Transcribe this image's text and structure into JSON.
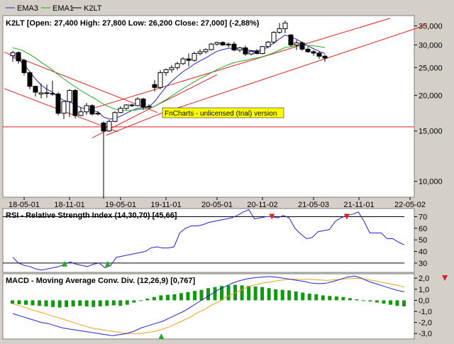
{
  "legend": {
    "items": [
      {
        "name": "EMA3",
        "color": "#2222cc"
      },
      {
        "name": "EMA1",
        "color": "#22aa22"
      },
      {
        "name": "K2LT",
        "color": "#000000"
      }
    ]
  },
  "watermark": "FnCharts - unlicensed (trial) version",
  "chart_data": [
    {
      "type": "candlestick",
      "title": "K2LT [Open: 27,400  High: 27,800  Low: 26,200  Close: 27,000] (-2,88%)",
      "scale": "log",
      "ylim": [
        8800,
        38000
      ],
      "yticks": [
        10000,
        15000,
        20000,
        25000,
        30000,
        35000
      ],
      "ytick_labels": [
        "10,000",
        "15,000",
        "20,000",
        "25,000",
        "30,000",
        "35,000"
      ],
      "xtick_labels": [
        {
          "label": "18-05-01",
          "bar": 2
        },
        {
          "label": "18-11-01",
          "bar": 10
        },
        {
          "label": "19-05-01",
          "bar": 19
        },
        {
          "label": "19-11-01",
          "bar": 27
        },
        {
          "label": "20-05-01",
          "bar": 36
        },
        {
          "label": "20-11-02",
          "bar": 44
        },
        {
          "label": "21-05-03",
          "bar": 53
        },
        {
          "label": "21-11-01",
          "bar": 61
        },
        {
          "label": "22-05-02",
          "bar": 70
        }
      ],
      "candles": [
        {
          "o": 27500,
          "h": 28600,
          "l": 26200,
          "c": 28200
        },
        {
          "o": 28200,
          "h": 28500,
          "l": 25800,
          "c": 26400
        },
        {
          "o": 26500,
          "h": 26800,
          "l": 23500,
          "c": 24000
        },
        {
          "o": 24000,
          "h": 24200,
          "l": 21000,
          "c": 21500
        },
        {
          "o": 21500,
          "h": 21600,
          "l": 19800,
          "c": 20500
        },
        {
          "o": 20200,
          "h": 22000,
          "l": 19500,
          "c": 20400
        },
        {
          "o": 20400,
          "h": 21800,
          "l": 19600,
          "c": 20300
        },
        {
          "o": 20300,
          "h": 22500,
          "l": 19900,
          "c": 20200
        },
        {
          "o": 20200,
          "h": 20500,
          "l": 17000,
          "c": 17300
        },
        {
          "o": 17300,
          "h": 19000,
          "l": 16500,
          "c": 19000
        },
        {
          "o": 19000,
          "h": 21000,
          "l": 16800,
          "c": 20800
        },
        {
          "o": 20800,
          "h": 21000,
          "l": 16600,
          "c": 17000
        },
        {
          "o": 17000,
          "h": 18200,
          "l": 16900,
          "c": 17500
        },
        {
          "o": 17500,
          "h": 18800,
          "l": 17100,
          "c": 18400
        },
        {
          "o": 18400,
          "h": 18600,
          "l": 17000,
          "c": 17200
        },
        {
          "o": 17200,
          "h": 17600,
          "l": 17000,
          "c": 17300
        },
        {
          "o": 16000,
          "h": 16200,
          "l": 8700,
          "c": 15000
        },
        {
          "o": 15000,
          "h": 16400,
          "l": 14900,
          "c": 16200
        },
        {
          "o": 16200,
          "h": 17600,
          "l": 16100,
          "c": 17400
        },
        {
          "o": 17400,
          "h": 18300,
          "l": 17300,
          "c": 18000
        },
        {
          "o": 18000,
          "h": 18600,
          "l": 17800,
          "c": 18500
        },
        {
          "o": 18500,
          "h": 18700,
          "l": 18200,
          "c": 18400
        },
        {
          "o": 18400,
          "h": 19700,
          "l": 18300,
          "c": 19400
        },
        {
          "o": 19400,
          "h": 19600,
          "l": 17800,
          "c": 18200
        },
        {
          "o": 18200,
          "h": 18600,
          "l": 18000,
          "c": 18300
        },
        {
          "o": 21800,
          "h": 22600,
          "l": 20600,
          "c": 21300
        },
        {
          "o": 21300,
          "h": 24500,
          "l": 21000,
          "c": 24000
        },
        {
          "o": 24000,
          "h": 24800,
          "l": 23400,
          "c": 24600
        },
        {
          "o": 24600,
          "h": 25500,
          "l": 24000,
          "c": 25000
        },
        {
          "o": 25000,
          "h": 26200,
          "l": 24500,
          "c": 25800
        },
        {
          "o": 25800,
          "h": 27200,
          "l": 25500,
          "c": 26800
        },
        {
          "o": 26800,
          "h": 28000,
          "l": 25200,
          "c": 26500
        },
        {
          "o": 26500,
          "h": 28400,
          "l": 26200,
          "c": 28000
        },
        {
          "o": 28000,
          "h": 29000,
          "l": 27600,
          "c": 28400
        },
        {
          "o": 28400,
          "h": 29200,
          "l": 28000,
          "c": 28900
        },
        {
          "o": 28900,
          "h": 30500,
          "l": 28700,
          "c": 30200
        },
        {
          "o": 30200,
          "h": 30800,
          "l": 29800,
          "c": 30600
        },
        {
          "o": 30600,
          "h": 30900,
          "l": 29800,
          "c": 30000
        },
        {
          "o": 30000,
          "h": 30600,
          "l": 29400,
          "c": 30200
        },
        {
          "o": 30200,
          "h": 30800,
          "l": 28500,
          "c": 28800
        },
        {
          "o": 28800,
          "h": 29500,
          "l": 28300,
          "c": 29300
        },
        {
          "o": 29300,
          "h": 29800,
          "l": 27500,
          "c": 27900
        },
        {
          "o": 27900,
          "h": 28800,
          "l": 27600,
          "c": 28500
        },
        {
          "o": 28500,
          "h": 29000,
          "l": 27800,
          "c": 28000
        },
        {
          "o": 28000,
          "h": 29800,
          "l": 27800,
          "c": 29600
        },
        {
          "o": 29600,
          "h": 31000,
          "l": 29200,
          "c": 30700
        },
        {
          "o": 30700,
          "h": 33500,
          "l": 30200,
          "c": 33200
        },
        {
          "o": 33200,
          "h": 35800,
          "l": 32800,
          "c": 34200
        },
        {
          "o": 34200,
          "h": 36500,
          "l": 33000,
          "c": 35800
        },
        {
          "o": 32500,
          "h": 32800,
          "l": 29500,
          "c": 30000
        },
        {
          "o": 30000,
          "h": 31200,
          "l": 28800,
          "c": 30500
        },
        {
          "o": 30500,
          "h": 30900,
          "l": 28600,
          "c": 29000
        },
        {
          "o": 29000,
          "h": 29600,
          "l": 28200,
          "c": 28400
        },
        {
          "o": 28400,
          "h": 28800,
          "l": 27500,
          "c": 28100
        },
        {
          "o": 28100,
          "h": 28500,
          "l": 26800,
          "c": 27400
        },
        {
          "o": 27400,
          "h": 27800,
          "l": 26200,
          "c": 27000
        }
      ],
      "ema_series": [
        {
          "name": "EMA3",
          "color": "#2222cc",
          "values": [
            27200,
            26600,
            25600,
            24200,
            22800,
            21700,
            21000,
            20500,
            19700,
            19200,
            19000,
            18500,
            18100,
            17900,
            17700,
            17500,
            16800,
            16500,
            16600,
            16900,
            17300,
            17700,
            18000,
            18100,
            18200,
            19000,
            20200,
            21400,
            22400,
            23300,
            24200,
            24900,
            25700,
            26400,
            27000,
            27800,
            28500,
            28900,
            29200,
            29200,
            29200,
            28800,
            28700,
            28600,
            28900,
            29500,
            30500,
            31500,
            32500,
            32000,
            31400,
            30600,
            29800,
            29100,
            28500,
            28000
          ]
        },
        {
          "name": "EMA1",
          "color": "#22aa22",
          "values": [
            29300,
            29000,
            28500,
            27800,
            27000,
            26100,
            25300,
            24500,
            23600,
            22800,
            22100,
            21400,
            20800,
            20200,
            19700,
            19200,
            18600,
            18200,
            17900,
            17700,
            17700,
            17700,
            17800,
            17900,
            18000,
            18300,
            18800,
            19300,
            19900,
            20500,
            21100,
            21700,
            22300,
            22900,
            23400,
            24000,
            24600,
            25100,
            25600,
            26000,
            26300,
            26500,
            26800,
            27000,
            27300,
            27700,
            28200,
            28800,
            29400,
            29600,
            29800,
            29900,
            29900,
            29800,
            29600,
            29400
          ]
        }
      ],
      "trendlines": [
        {
          "from": {
            "bar": -1.5,
            "value": 28300
          },
          "to": {
            "bar": 25.5,
            "value": 17400
          }
        },
        {
          "from": {
            "bar": -1.5,
            "value": 21100
          },
          "to": {
            "bar": 18.5,
            "value": 14900
          }
        },
        {
          "from": {
            "bar": 14,
            "value": 14200
          },
          "to": {
            "bar": 36,
            "value": 23600
          }
        },
        {
          "from": {
            "bar": 16.5,
            "value": 14500
          },
          "to": {
            "bar": 26.5,
            "value": 17400
          }
        },
        {
          "from": {
            "bar": 14.5,
            "value": 18100
          },
          "to": {
            "bar": 66.5,
            "value": 37200
          }
        },
        {
          "from": {
            "bar": 27,
            "value": 17500
          },
          "to": {
            "bar": 73,
            "value": 35300
          }
        }
      ],
      "hline": 15500
    },
    {
      "type": "line",
      "title": "RSI - Relative Strength Index (14,30,70) [45,66]",
      "ylim": [
        22,
        77
      ],
      "yticks": [
        30,
        40,
        50,
        60,
        70
      ],
      "ytick_labels": [
        "30",
        "40",
        "50",
        "60",
        "70"
      ],
      "levels": [
        30,
        70
      ],
      "series": [
        {
          "values": [
            35,
            30,
            28,
            27,
            25,
            24,
            25,
            26,
            27,
            29,
            31,
            29,
            28,
            27,
            29,
            30,
            26,
            28,
            35,
            36,
            37,
            38,
            39,
            40,
            43,
            44,
            43,
            43,
            44,
            56,
            60,
            62,
            62,
            63,
            65,
            66,
            67,
            68,
            69,
            71,
            74,
            76,
            68,
            69,
            70,
            70,
            69,
            71,
            69,
            60,
            55,
            51,
            52,
            57,
            58,
            59,
            66,
            69,
            71,
            72,
            74,
            66,
            56,
            56,
            56,
            51,
            51,
            48,
            45.7
          ]
        }
      ],
      "markers_sell": [
        {
          "bar": 45
        },
        {
          "bar": 58
        }
      ],
      "markers_buy": [
        {
          "bar": 9
        },
        {
          "bar": 16.5
        }
      ]
    },
    {
      "type": "bar+line",
      "title": "MACD - Moving Average Conv. Div. (12,26,9) [0,767]",
      "ylim": [
        -3.5,
        2.4
      ],
      "yticks": [
        -3.0,
        -2.0,
        -1.0,
        0.0,
        1.0,
        2.0
      ],
      "ytick_labels": [
        "-3,0",
        "-2,0",
        "-1,0",
        "0,0",
        "1,0",
        "2,0"
      ],
      "histogram": [
        -0.3,
        -0.35,
        -0.4,
        -0.45,
        -0.5,
        -0.55,
        -0.6,
        -0.65,
        -0.6,
        -0.55,
        -0.5,
        -0.55,
        -0.6,
        -0.55,
        -0.5,
        -0.45,
        -0.5,
        -0.4,
        -0.2,
        0.0,
        0.15,
        0.3,
        0.45,
        0.5,
        0.55,
        0.65,
        0.75,
        0.85,
        0.95,
        1.1,
        1.2,
        1.3,
        1.35,
        1.4,
        1.35,
        1.3,
        1.25,
        1.2,
        1.1,
        1.0,
        0.95,
        0.9,
        0.8,
        0.7,
        0.6,
        0.55,
        0.45,
        0.4,
        0.35,
        0.3,
        0.2,
        0.1,
        0.0,
        -0.1,
        -0.2,
        -0.3,
        -0.4,
        -0.5,
        -0.55
      ],
      "macd_line": [
        -1.2,
        -1.4,
        -1.6,
        -1.8,
        -2.0,
        -2.1,
        -2.3,
        -2.5,
        -2.6,
        -2.7,
        -2.8,
        -2.9,
        -3.0,
        -3.1,
        -3.2,
        -3.1,
        -3.0,
        -2.8,
        -2.5,
        -2.3,
        -2.1,
        -1.9,
        -1.6,
        -1.3,
        -1.0,
        -0.6,
        -0.2,
        0.2,
        0.6,
        1.0,
        1.3,
        1.6,
        1.8,
        1.95,
        2.05,
        2.1,
        2.15,
        2.1,
        2.0,
        1.9,
        1.8,
        1.7,
        1.55,
        1.5,
        1.55,
        1.7,
        1.9,
        2.1,
        2.2,
        2.0,
        1.7,
        1.5,
        1.3,
        1.1,
        0.9,
        0.77
      ],
      "signal_line": [
        -0.3,
        -0.5,
        -0.7,
        -0.9,
        -1.1,
        -1.3,
        -1.5,
        -1.7,
        -1.9,
        -2.1,
        -2.3,
        -2.5,
        -2.6,
        -2.7,
        -2.8,
        -2.9,
        -3.0,
        -3.0,
        -3.0,
        -2.9,
        -2.8,
        -2.6,
        -2.4,
        -2.1,
        -1.8,
        -1.5,
        -1.1,
        -0.8,
        -0.4,
        -0.1,
        0.3,
        0.6,
        0.9,
        1.2,
        1.4,
        1.55,
        1.65,
        1.75,
        1.85,
        1.9,
        1.9,
        1.9,
        1.9,
        1.85,
        1.8,
        1.85,
        1.9,
        1.95,
        2.0,
        1.95,
        1.85,
        1.75,
        1.6,
        1.5,
        1.35,
        1.2
      ],
      "markers_sell": [
        {
          "bar": 64
        }
      ],
      "markers_buy": [
        {
          "bar": 22
        }
      ]
    }
  ]
}
